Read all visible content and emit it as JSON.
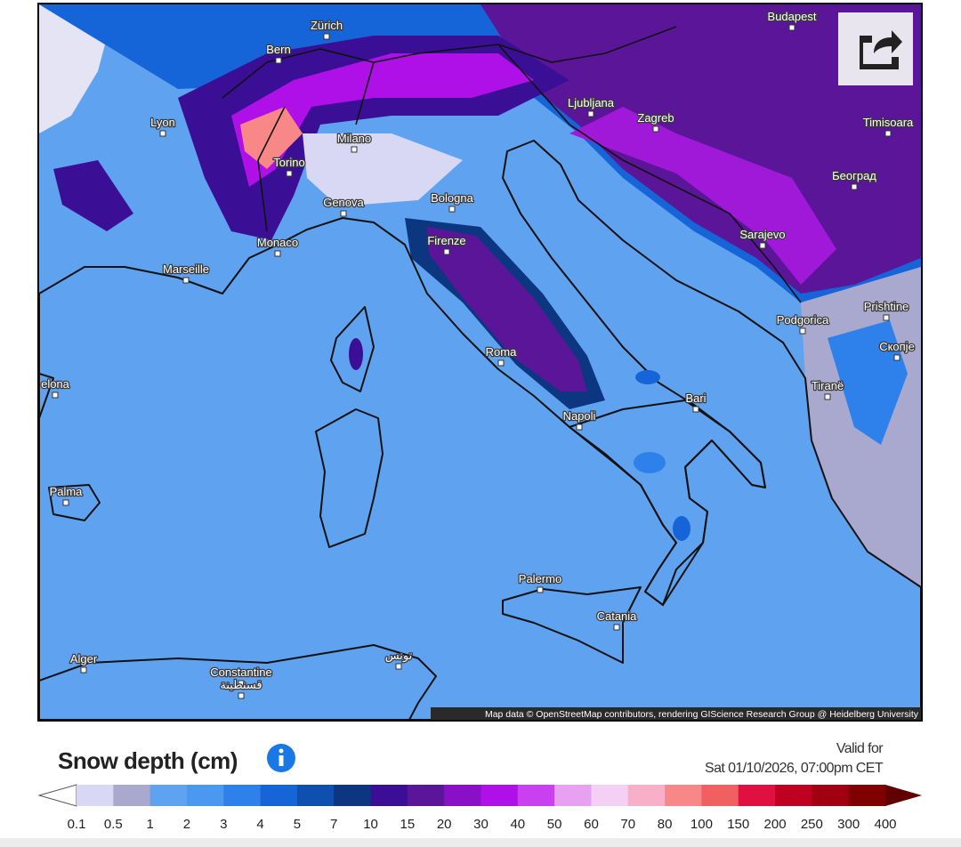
{
  "title": "Snow depth (cm)",
  "valid_label": "Valid for",
  "valid_time": "Sat 01/10/2026, 07:00pm CET",
  "attribution": "Map data © OpenStreetMap contributors, rendering GIScience Research Group @ Heidelberg University",
  "cities": [
    {
      "name": "Zürich"
    },
    {
      "name": "Bern"
    },
    {
      "name": "Budapest"
    },
    {
      "name": "Lyon"
    },
    {
      "name": "Milano"
    },
    {
      "name": "Torino"
    },
    {
      "name": "Ljubljana"
    },
    {
      "name": "Zagreb"
    },
    {
      "name": "Timisoara"
    },
    {
      "name": "Београд"
    },
    {
      "name": "Genova"
    },
    {
      "name": "Bologna"
    },
    {
      "name": "Monaco"
    },
    {
      "name": "Firenze"
    },
    {
      "name": "Sarajevo"
    },
    {
      "name": "Marseille"
    },
    {
      "name": "Podgorica"
    },
    {
      "name": "Prishtine"
    },
    {
      "name": "Скопје"
    },
    {
      "name": "Roma"
    },
    {
      "name": "Tiranë"
    },
    {
      "name": "Bari"
    },
    {
      "name": "Napoli"
    },
    {
      "name": "elona"
    },
    {
      "name": "Palma"
    },
    {
      "name": "Palermo"
    },
    {
      "name": "Catania"
    },
    {
      "name": "Alger"
    },
    {
      "name": "Constantine"
    },
    {
      "name": "قسنطينة"
    },
    {
      "name": "تونس"
    }
  ],
  "legend": {
    "ticks": [
      "0.1",
      "0.5",
      "1",
      "2",
      "3",
      "4",
      "5",
      "7",
      "10",
      "15",
      "20",
      "30",
      "40",
      "50",
      "60",
      "70",
      "80",
      "100",
      "150",
      "200",
      "250",
      "300",
      "400"
    ],
    "colors": [
      "#d8d8f4",
      "#a9a9cf",
      "#5fa3f0",
      "#4a98f0",
      "#2e80ea",
      "#1565d8",
      "#0f4fb0",
      "#0c3680",
      "#3b0f95",
      "#5a1599",
      "#8a10c8",
      "#b010e8",
      "#c840f0",
      "#e8a0f0",
      "#f4d0f4",
      "#f8b0c8",
      "#f88888",
      "#f06060",
      "#e01040",
      "#c00020",
      "#a00010",
      "#800000"
    ],
    "under_color": "#ffffff",
    "over_color": "#600000"
  }
}
